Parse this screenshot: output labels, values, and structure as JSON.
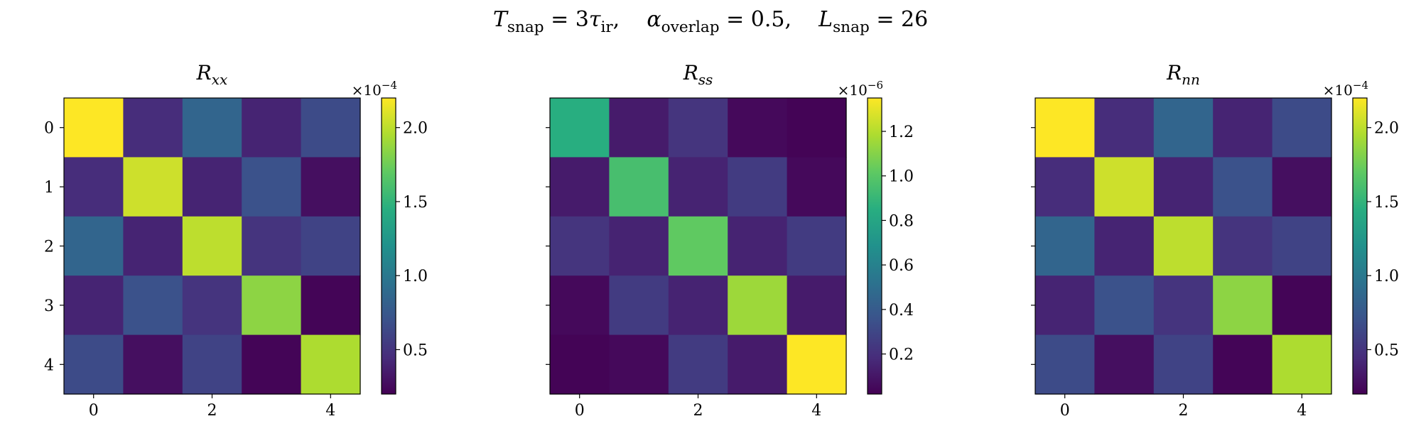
{
  "suptitle": {
    "t_var": "T",
    "t_sub": "snap",
    "t_eq": " = 3",
    "tau": "τ",
    "tau_sub": "ir",
    "sep1": ",",
    "a_var": "α",
    "a_sub": "overlap",
    "a_eq": " = 0.5",
    "sep2": ",",
    "l_var": "L",
    "l_sub": "snap",
    "l_eq": " = 26"
  },
  "chart_data": [
    {
      "type": "heatmap",
      "title": "R_xx",
      "title_var": "R",
      "title_sub": "xx",
      "x_ticks": [
        0,
        2,
        4
      ],
      "y_ticks": [
        0,
        1,
        2,
        3,
        4
      ],
      "colormap": "viridis",
      "colorbar_range": [
        0.2,
        2.2
      ],
      "colorbar_ticks": [
        0.5,
        1.0,
        1.5,
        2.0
      ],
      "colorbar_tick_labels": [
        "0.5",
        "1.0",
        "1.5",
        "2.0"
      ],
      "exponent_label": "×10",
      "exponent_power": "−4",
      "values": [
        [
          2.2,
          0.45,
          0.85,
          0.4,
          0.65
        ],
        [
          0.45,
          2.05,
          0.4,
          0.7,
          0.28
        ],
        [
          0.85,
          0.4,
          2.0,
          0.5,
          0.6
        ],
        [
          0.4,
          0.7,
          0.5,
          1.85,
          0.22
        ],
        [
          0.65,
          0.28,
          0.6,
          0.22,
          1.95
        ]
      ]
    },
    {
      "type": "heatmap",
      "title": "R_ss",
      "title_var": "R",
      "title_sub": "ss",
      "x_ticks": [
        0,
        2,
        4
      ],
      "y_ticks": [],
      "colormap": "viridis",
      "colorbar_range": [
        0.02,
        1.35
      ],
      "colorbar_ticks": [
        0.2,
        0.4,
        0.6,
        0.8,
        1.0,
        1.2
      ],
      "colorbar_tick_labels": [
        "0.2",
        "0.4",
        "0.6",
        "0.8",
        "1.0",
        "1.2"
      ],
      "exponent_label": "×10",
      "exponent_power": "−6",
      "values": [
        [
          0.85,
          0.12,
          0.22,
          0.05,
          0.03
        ],
        [
          0.12,
          0.95,
          0.15,
          0.25,
          0.05
        ],
        [
          0.22,
          0.15,
          1.02,
          0.15,
          0.25
        ],
        [
          0.05,
          0.25,
          0.15,
          1.15,
          0.12
        ],
        [
          0.03,
          0.05,
          0.25,
          0.12,
          1.35
        ]
      ]
    },
    {
      "type": "heatmap",
      "title": "R_nn",
      "title_var": "R",
      "title_sub": "nn",
      "x_ticks": [
        0,
        2,
        4
      ],
      "y_ticks": [],
      "colormap": "viridis",
      "colorbar_range": [
        0.2,
        2.2
      ],
      "colorbar_ticks": [
        0.5,
        1.0,
        1.5,
        2.0
      ],
      "colorbar_tick_labels": [
        "0.5",
        "1.0",
        "1.5",
        "2.0"
      ],
      "exponent_label": "×10",
      "exponent_power": "−4",
      "values": [
        [
          2.2,
          0.45,
          0.85,
          0.4,
          0.65
        ],
        [
          0.45,
          2.05,
          0.4,
          0.7,
          0.28
        ],
        [
          0.85,
          0.4,
          2.0,
          0.5,
          0.6
        ],
        [
          0.4,
          0.7,
          0.5,
          1.85,
          0.22
        ],
        [
          0.65,
          0.28,
          0.6,
          0.22,
          1.95
        ]
      ]
    }
  ]
}
